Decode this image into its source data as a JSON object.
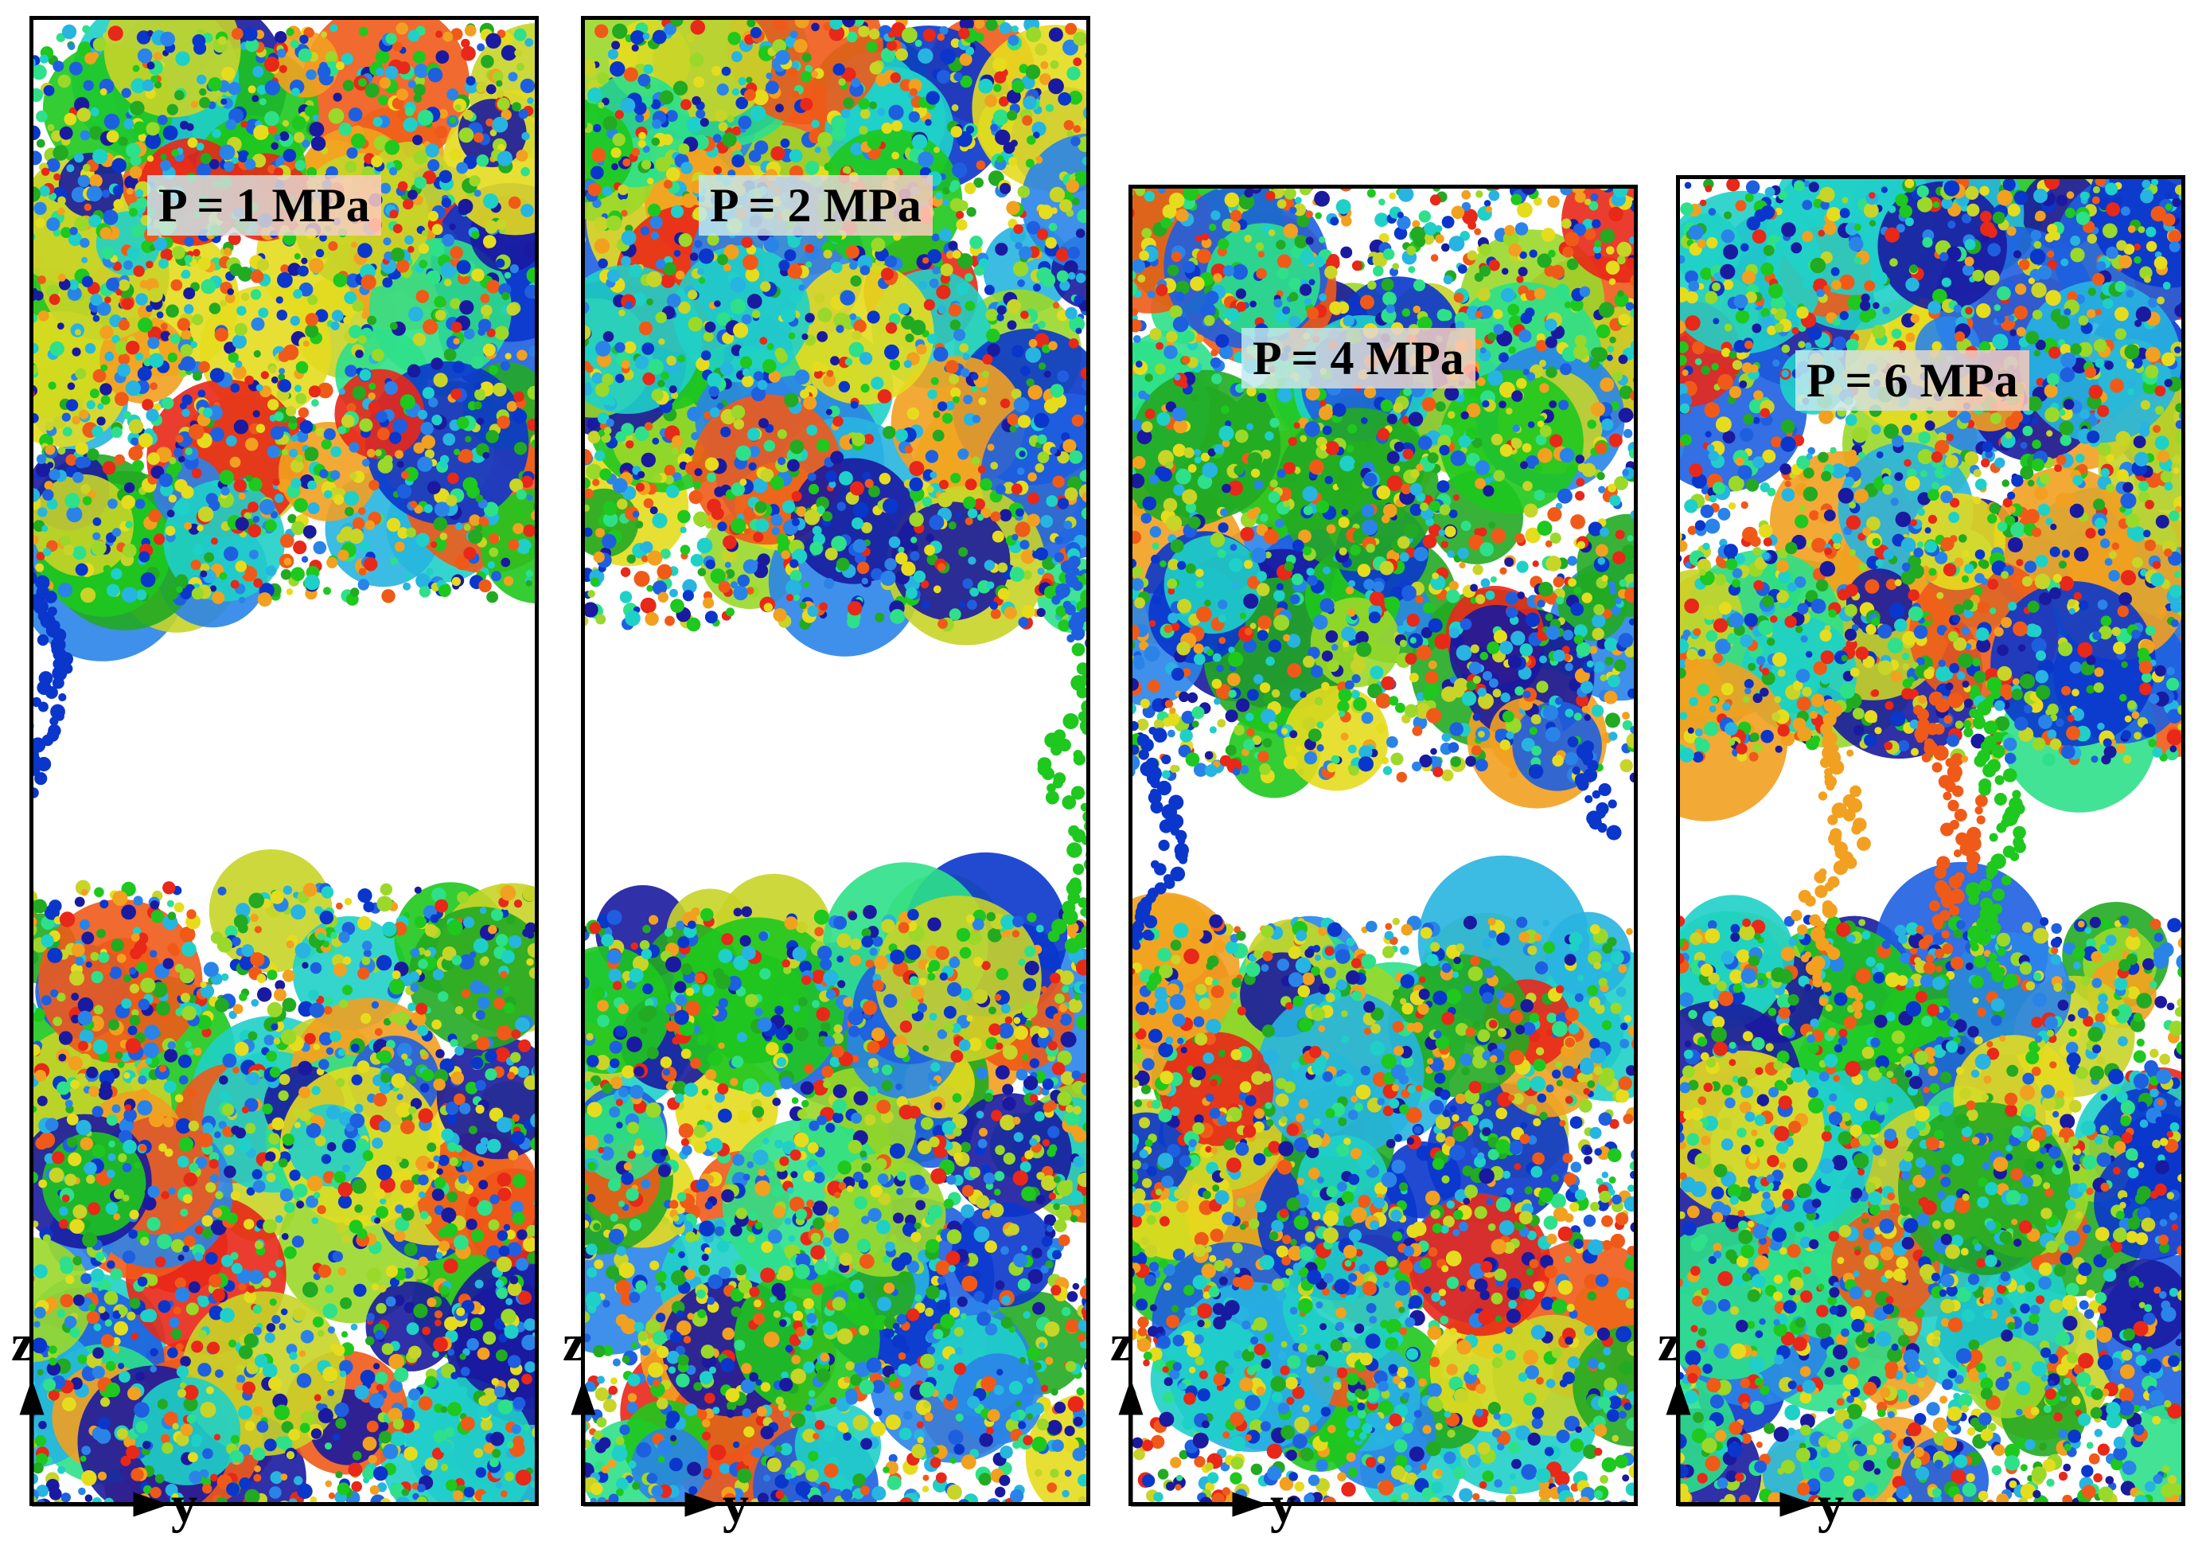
{
  "panels": [
    {
      "id": "p1",
      "label": "P = 1 MPa",
      "axis_vertical": "z",
      "axis_horizontal": "y"
    },
    {
      "id": "p2",
      "label": "P = 2 MPa",
      "axis_vertical": "z",
      "axis_horizontal": "y"
    },
    {
      "id": "p3",
      "label": "P = 4 MPa",
      "axis_vertical": "z",
      "axis_horizontal": "y"
    },
    {
      "id": "p4",
      "label": "P = 6 MPa",
      "axis_vertical": "z",
      "axis_horizontal": "y"
    }
  ],
  "colors": {
    "frame": "#000000",
    "molecule_palette": [
      "#1ec81e",
      "#22aa22",
      "#0a36cc",
      "#1e5fe0",
      "#2a84e8",
      "#27b4e0",
      "#1fd0c8",
      "#2ee08a",
      "#9ad82a",
      "#c8d428",
      "#e6dc1e",
      "#f2a020",
      "#f05a18",
      "#e82818",
      "#1a1aa0"
    ]
  }
}
